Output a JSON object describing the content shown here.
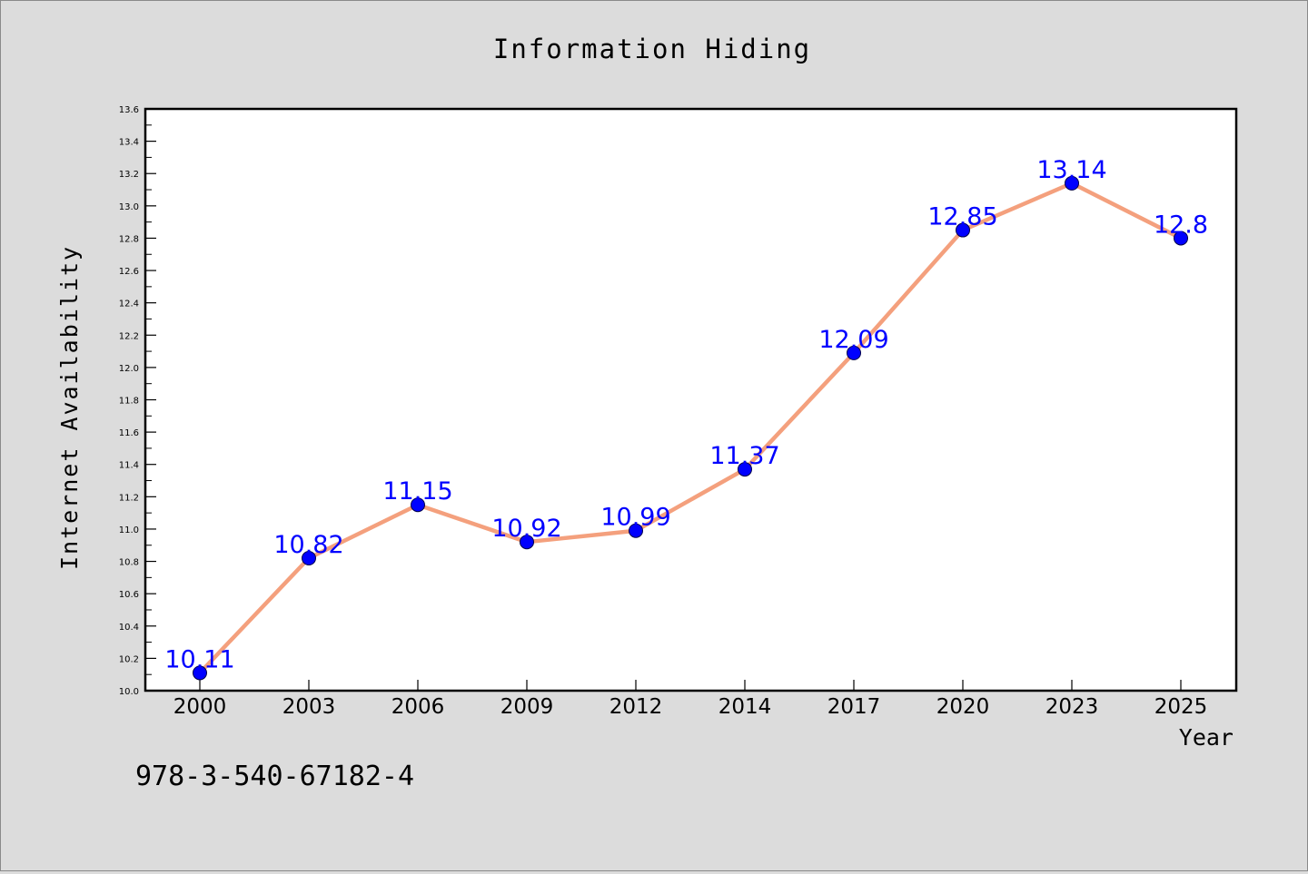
{
  "chart_data": {
    "type": "line",
    "title": "Information Hiding",
    "xlabel": "Year",
    "ylabel": "Internet Availability",
    "categories": [
      "2000",
      "2003",
      "2006",
      "2009",
      "2012",
      "2014",
      "2017",
      "2020",
      "2023",
      "2025"
    ],
    "series": [
      {
        "values": [
          10.11,
          10.82,
          11.15,
          10.92,
          10.99,
          11.37,
          12.09,
          12.85,
          13.14,
          12.8
        ],
        "labels": [
          "10.11",
          "10.82",
          "11.15",
          "10.92",
          "10.99",
          "11.37",
          "12.09",
          "12.85",
          "13.14",
          "12.8"
        ],
        "line_color": "#f4a07d",
        "marker_color": "#0000ff"
      }
    ],
    "ylim": [
      10.0,
      13.6
    ],
    "yticks": [
      "10.0",
      "10.2",
      "10.4",
      "10.6",
      "10.8",
      "11.0",
      "11.2",
      "11.4",
      "11.6",
      "11.8",
      "12.0",
      "12.2",
      "12.4",
      "12.6",
      "12.8",
      "13.0",
      "13.2",
      "13.4",
      "13.6"
    ],
    "grid": false,
    "legend": "none",
    "background_color": "#dcdcdc",
    "plot_background_color": "#ffffff"
  },
  "footer": {
    "note": "978-3-540-67182-4"
  }
}
